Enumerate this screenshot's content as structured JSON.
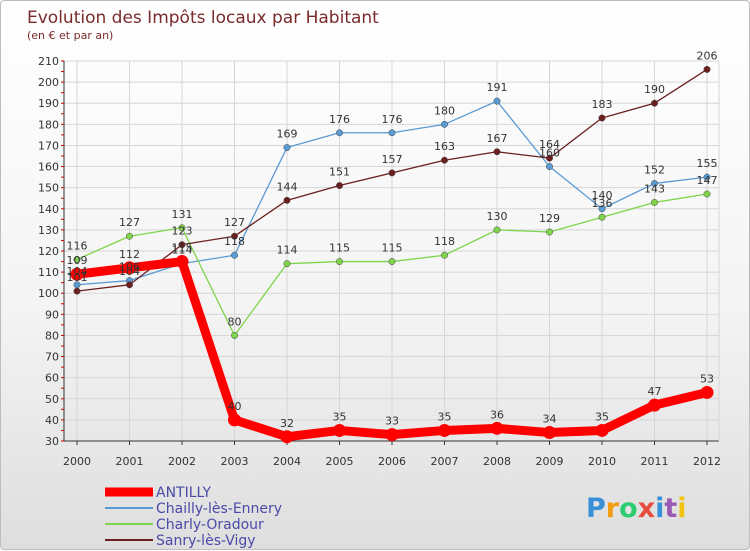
{
  "chart_data": {
    "type": "line",
    "title": "Evolution des Impôts locaux par Habitant",
    "subtitle": "(en € et par an)",
    "x": [
      2000,
      2001,
      2002,
      2003,
      2004,
      2005,
      2006,
      2007,
      2008,
      2009,
      2010,
      2011,
      2012
    ],
    "ylim": [
      30,
      210
    ],
    "yticks": [
      30,
      40,
      50,
      60,
      70,
      80,
      90,
      100,
      110,
      120,
      130,
      140,
      150,
      160,
      170,
      180,
      190,
      200,
      210
    ],
    "grid": true,
    "legend_position": "bottom-left",
    "series": [
      {
        "name": "Chailly-lès-Ennery",
        "color": "#5b9bd5",
        "values": [
          104,
          106,
          114,
          118,
          169,
          176,
          176,
          180,
          191,
          160,
          140,
          152,
          155
        ]
      },
      {
        "name": "Charly-Oradour",
        "color": "#7fd44c",
        "values": [
          116,
          127,
          131,
          80,
          114,
          115,
          115,
          118,
          130,
          129,
          136,
          143,
          147
        ]
      },
      {
        "name": "Sanry-lès-Vigy",
        "color": "#6b1f1f",
        "values": [
          101,
          104,
          123,
          127,
          144,
          151,
          157,
          163,
          167,
          164,
          183,
          190,
          206
        ]
      },
      {
        "name": "ANTILLY",
        "color": "#ff0000",
        "values": [
          109,
          112,
          115,
          40,
          32,
          35,
          33,
          35,
          36,
          34,
          35,
          47,
          53
        ]
      }
    ]
  },
  "logo": {
    "text": "Proxiti",
    "letters": [
      "P",
      "r",
      "o",
      "x",
      "i",
      "t",
      "i"
    ]
  }
}
